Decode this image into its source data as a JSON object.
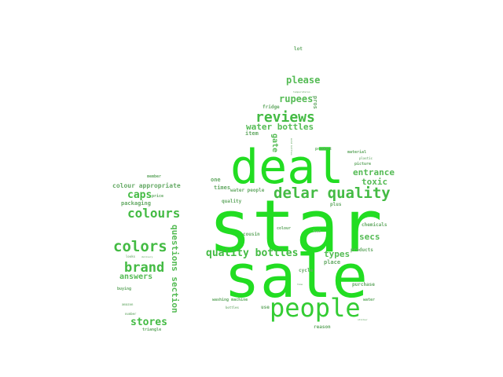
{
  "colors": {
    "bright": "#22dd22",
    "medium": "#44bb44",
    "dim": "#66aa66",
    "faint": "#88bb88"
  },
  "words": [
    "star",
    "sale",
    "deal",
    "people",
    "delar quality",
    "reviews",
    "quality bottles",
    "colors",
    "brand",
    "colours",
    "stores",
    "caps",
    "please",
    "rupees",
    "water bottles",
    "entrance",
    "toxic",
    "types",
    "secs",
    "questions section",
    "answers",
    "colour appropriate",
    "packaging",
    "price",
    "member",
    "buying",
    "amazon",
    "number",
    "triangle",
    "looks",
    "delivery",
    "lot",
    "temperatures",
    "pros",
    "fridge",
    "item",
    "gate",
    "product",
    "material",
    "plastic",
    "picture",
    "one",
    "times",
    "water people",
    "quality",
    "plus",
    "cousin",
    "colour",
    "food",
    "chemicals",
    "products",
    "place",
    "cycle",
    "purchase",
    "water",
    "washing machine",
    "bottles",
    "use",
    "reason",
    "sticker",
    "mold bottles",
    "time"
  ]
}
